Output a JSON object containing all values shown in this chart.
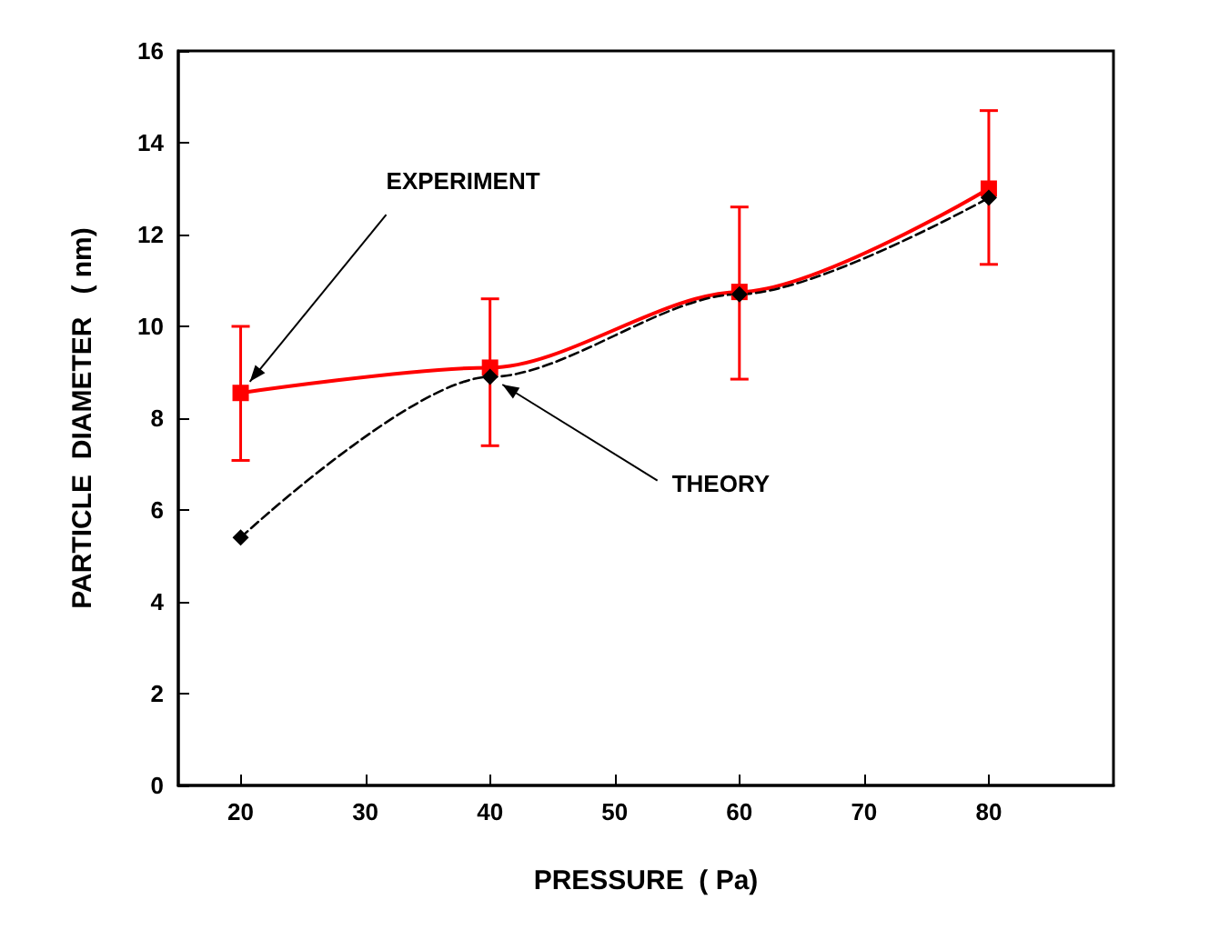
{
  "chart_data": {
    "type": "line",
    "xlabel": "PRESSURE  ( Pa)",
    "ylabel": "PARTICLE  DIAMETER   ( nm)",
    "x": [
      20,
      40,
      60,
      80
    ],
    "series": [
      {
        "name": "EXPERIMENT",
        "color": "#ff0000",
        "values": [
          8.55,
          9.1,
          10.75,
          13.0
        ],
        "errors": [
          [
            7.08,
            10.0
          ],
          [
            7.4,
            10.6
          ],
          [
            8.85,
            12.6
          ],
          [
            11.35,
            14.7
          ]
        ],
        "marker": "square",
        "line_style": "solid"
      },
      {
        "name": "THEORY",
        "color": "#000000",
        "values": [
          5.4,
          8.9,
          10.7,
          12.8
        ],
        "marker": "diamond",
        "line_style": "dashed"
      }
    ],
    "xlim": [
      15,
      90
    ],
    "xticks": [
      20,
      30,
      40,
      50,
      60,
      70,
      80
    ],
    "ylim": [
      0,
      16
    ],
    "yticks": [
      0,
      2,
      4,
      6,
      8,
      10,
      12,
      14,
      16
    ],
    "grid": false,
    "legend": false
  }
}
